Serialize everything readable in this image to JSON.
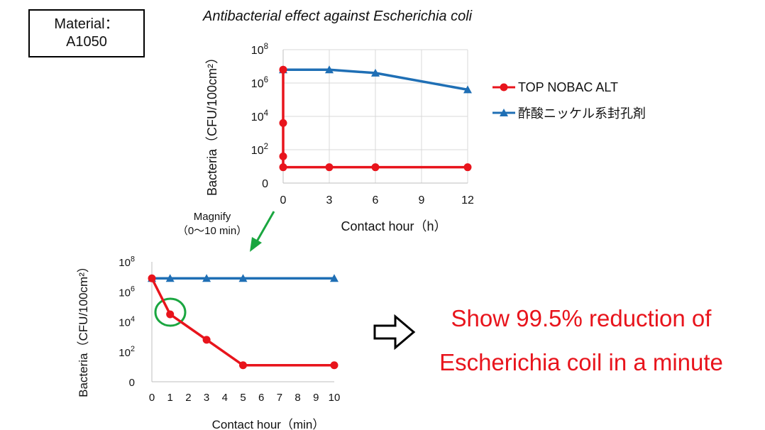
{
  "material": {
    "line1": "Material：",
    "line2": "A1050"
  },
  "main_title": "Antibacterial effect against Escherichia coli",
  "legend": [
    {
      "name": "TOP NOBAC ALT",
      "color": "#e8141c",
      "marker": "circle"
    },
    {
      "name": "酢酸ニッケル系封孔剤",
      "color": "#1f6fb5",
      "marker": "triangle"
    }
  ],
  "magnify": {
    "line1": "Magnify",
    "line2": "（0～10 min）"
  },
  "conclusion": {
    "line1": "Show 99.5% reduction of",
    "line2": "Escherichia coil in a minute"
  },
  "chart_data": [
    {
      "type": "line",
      "xlabel": "Contact hour（h）",
      "ylabel": "Bacteria（CFU/100cm²）",
      "y_scale": "log",
      "xlim": [
        0,
        12
      ],
      "ylim_log10": [
        0,
        8
      ],
      "x_ticks": [
        "0",
        "3",
        "6",
        "9",
        "12"
      ],
      "y_ticks": [
        "0",
        "10²",
        "10⁴",
        "10⁶",
        "10⁸"
      ],
      "grid": true,
      "series": [
        {
          "name": "TOP NOBAC ALT",
          "color": "#e8141c",
          "marker": "circle",
          "x": [
            0,
            0,
            0,
            0,
            3,
            6,
            12
          ],
          "y_log10": [
            6.8,
            3.6,
            1.6,
            0.95,
            0.95,
            0.95,
            0.95
          ]
        },
        {
          "name": "酢酸ニッケル系封孔剤",
          "color": "#1f6fb5",
          "marker": "triangle",
          "x": [
            0,
            3,
            6,
            12
          ],
          "y_log10": [
            6.8,
            6.8,
            6.6,
            5.6
          ]
        }
      ]
    },
    {
      "type": "line",
      "xlabel": "Contact hour（min）",
      "ylabel": "Bacteria（CFU/100cm²）",
      "y_scale": "log",
      "xlim": [
        0,
        10
      ],
      "ylim_log10": [
        0,
        8
      ],
      "x_ticks": [
        "0",
        "1",
        "2",
        "3",
        "4",
        "5",
        "6",
        "7",
        "8",
        "9",
        "10"
      ],
      "y_ticks": [
        "0",
        "10²",
        "10⁴",
        "10⁶",
        "10⁸"
      ],
      "grid": false,
      "series": [
        {
          "name": "TOP NOBAC ALT",
          "color": "#e8141c",
          "marker": "circle",
          "x": [
            0,
            1,
            3,
            5,
            10
          ],
          "y_log10": [
            6.9,
            4.5,
            2.8,
            1.1,
            1.1
          ]
        },
        {
          "name": "酢酸ニッケル系封孔剤",
          "color": "#1f6fb5",
          "marker": "triangle",
          "x": [
            0,
            1,
            3,
            5,
            10
          ],
          "y_log10": [
            6.9,
            6.9,
            6.9,
            6.9,
            6.9
          ]
        }
      ]
    }
  ]
}
